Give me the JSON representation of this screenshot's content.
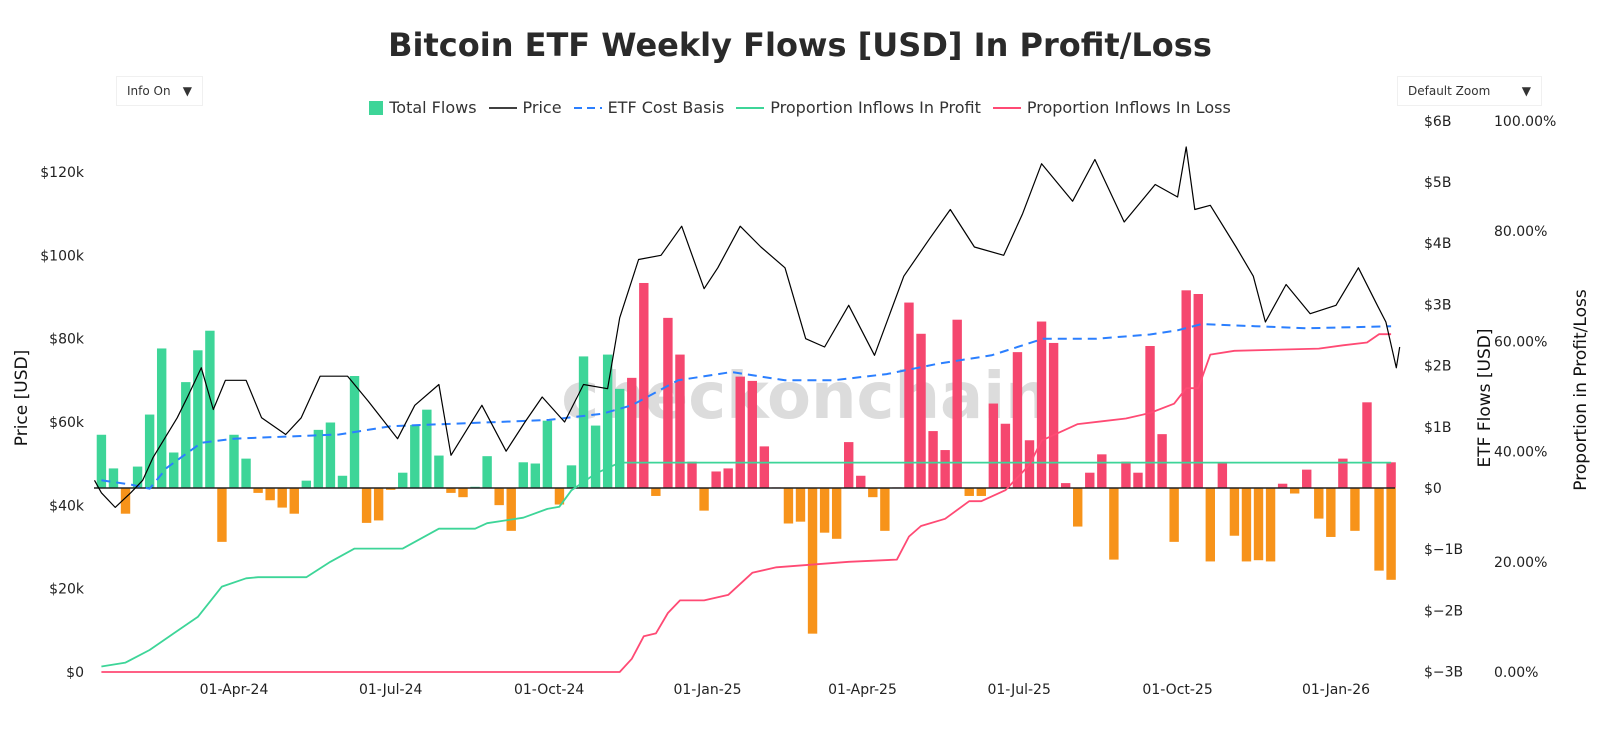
{
  "controls": {
    "info_label": "Info On",
    "zoom_label": "Default Zoom",
    "caret": "▼"
  },
  "watermark": "checkonchain",
  "chart_data": {
    "type": "bar+line",
    "title": "Bitcoin ETF Weekly Flows [USD] In Profit/Loss",
    "colors": {
      "green": "#3dd598",
      "red": "#f5476f",
      "orange": "#f7931a",
      "price": "#000000",
      "cost_basis": "#2b7fff",
      "profit_line": "#3dd598",
      "loss_line": "#ff4a74"
    },
    "legend": [
      "Total Flows",
      "Price",
      "ETF Cost Basis",
      "Proportion Inflows In Profit",
      "Proportion Inflows In Loss"
    ],
    "legend_placement": "top-center",
    "grid": false,
    "x_ticks": [
      "01-Apr-24",
      "01-Jul-24",
      "01-Oct-24",
      "01-Jan-25",
      "01-Apr-25",
      "01-Jul-25",
      "01-Oct-25",
      "01-Jan-26"
    ],
    "x_tick_dates": [
      "2024-04-01",
      "2024-07-01",
      "2024-10-01",
      "2025-01-01",
      "2025-04-01",
      "2025-07-01",
      "2025-10-01",
      "2026-01-01"
    ],
    "y_left": {
      "label": "Price [USD]",
      "range": [
        0,
        120000
      ],
      "ticks": [
        "$0",
        "$20k",
        "$40k",
        "$60k",
        "$80k",
        "$100k",
        "$120k"
      ]
    },
    "y_right": {
      "label": "ETF Flows [USD]",
      "range_billions": [
        -3,
        6
      ],
      "ticks": [
        "$−3B",
        "$−2B",
        "$−1B",
        "$0",
        "$1B",
        "$2B",
        "$3B",
        "$4B",
        "$5B",
        "$6B"
      ]
    },
    "y_right2": {
      "label": "Proportion in Profit/Loss",
      "range_percent": [
        0,
        100
      ],
      "ticks": [
        "0.00%",
        "20.00%",
        "40.00%",
        "60.00%",
        "80.00%",
        "100.00%"
      ]
    },
    "flows_billions": [
      [
        "2024-01-15",
        0.87,
        "green"
      ],
      [
        "2024-01-22",
        0.32,
        "green"
      ],
      [
        "2024-01-29",
        -0.42,
        "orange"
      ],
      [
        "2024-02-05",
        0.35,
        "green"
      ],
      [
        "2024-02-12",
        1.2,
        "green"
      ],
      [
        "2024-02-19",
        2.28,
        "green"
      ],
      [
        "2024-02-26",
        0.58,
        "green"
      ],
      [
        "2024-03-04",
        1.73,
        "green"
      ],
      [
        "2024-03-11",
        2.25,
        "green"
      ],
      [
        "2024-03-18",
        2.57,
        "green"
      ],
      [
        "2024-03-25",
        -0.88,
        "orange"
      ],
      [
        "2024-04-01",
        0.87,
        "green"
      ],
      [
        "2024-04-08",
        0.48,
        "green"
      ],
      [
        "2024-04-15",
        -0.08,
        "orange"
      ],
      [
        "2024-04-22",
        -0.2,
        "orange"
      ],
      [
        "2024-04-29",
        -0.32,
        "orange"
      ],
      [
        "2024-05-06",
        -0.42,
        "orange"
      ],
      [
        "2024-05-13",
        0.12,
        "green"
      ],
      [
        "2024-05-20",
        0.95,
        "green"
      ],
      [
        "2024-05-27",
        1.07,
        "green"
      ],
      [
        "2024-06-03",
        0.2,
        "green"
      ],
      [
        "2024-06-10",
        1.83,
        "green"
      ],
      [
        "2024-06-17",
        -0.57,
        "orange"
      ],
      [
        "2024-06-24",
        -0.53,
        "orange"
      ],
      [
        "2024-07-01",
        -0.03,
        "orange"
      ],
      [
        "2024-07-08",
        0.25,
        "green"
      ],
      [
        "2024-07-15",
        1.03,
        "green"
      ],
      [
        "2024-07-22",
        1.28,
        "green"
      ],
      [
        "2024-07-29",
        0.53,
        "green"
      ],
      [
        "2024-08-05",
        -0.08,
        "orange"
      ],
      [
        "2024-08-12",
        -0.15,
        "orange"
      ],
      [
        "2024-08-19",
        0.02,
        "green"
      ],
      [
        "2024-08-26",
        0.52,
        "green"
      ],
      [
        "2024-09-02",
        -0.28,
        "orange"
      ],
      [
        "2024-09-09",
        -0.7,
        "orange"
      ],
      [
        "2024-09-16",
        0.42,
        "green"
      ],
      [
        "2024-09-23",
        0.4,
        "green"
      ],
      [
        "2024-09-30",
        1.1,
        "green"
      ],
      [
        "2024-10-07",
        -0.27,
        "orange"
      ],
      [
        "2024-10-14",
        0.37,
        "green"
      ],
      [
        "2024-10-21",
        2.15,
        "green"
      ],
      [
        "2024-10-28",
        1.02,
        "green"
      ],
      [
        "2024-11-04",
        2.18,
        "green"
      ],
      [
        "2024-11-11",
        1.62,
        "green"
      ],
      [
        "2024-11-18",
        1.8,
        "red"
      ],
      [
        "2024-11-25",
        3.35,
        "red"
      ],
      [
        "2024-12-02",
        -0.13,
        "orange"
      ],
      [
        "2024-12-09",
        2.78,
        "red"
      ],
      [
        "2024-12-16",
        2.18,
        "red"
      ],
      [
        "2024-12-23",
        0.43,
        "red"
      ],
      [
        "2024-12-30",
        -0.37,
        "orange"
      ],
      [
        "2025-01-06",
        0.27,
        "red"
      ],
      [
        "2025-01-13",
        0.32,
        "red"
      ],
      [
        "2025-01-20",
        1.82,
        "red"
      ],
      [
        "2025-01-27",
        1.75,
        "red"
      ],
      [
        "2025-02-03",
        0.68,
        "red"
      ],
      [
        "2025-02-10",
        0.01,
        "red"
      ],
      [
        "2025-02-17",
        -0.58,
        "orange"
      ],
      [
        "2025-02-24",
        -0.55,
        "orange"
      ],
      [
        "2025-03-03",
        -2.38,
        "orange"
      ],
      [
        "2025-03-10",
        -0.73,
        "orange"
      ],
      [
        "2025-03-17",
        -0.83,
        "orange"
      ],
      [
        "2025-03-24",
        0.75,
        "red"
      ],
      [
        "2025-03-31",
        0.2,
        "red"
      ],
      [
        "2025-04-07",
        -0.15,
        "orange"
      ],
      [
        "2025-04-14",
        -0.7,
        "orange"
      ],
      [
        "2025-04-21",
        0.01,
        "red"
      ],
      [
        "2025-04-28",
        3.03,
        "red"
      ],
      [
        "2025-05-05",
        2.52,
        "red"
      ],
      [
        "2025-05-12",
        0.93,
        "red"
      ],
      [
        "2025-05-19",
        0.62,
        "red"
      ],
      [
        "2025-05-26",
        2.75,
        "red"
      ],
      [
        "2025-06-02",
        -0.13,
        "orange"
      ],
      [
        "2025-06-09",
        -0.13,
        "orange"
      ],
      [
        "2025-06-16",
        1.38,
        "red"
      ],
      [
        "2025-06-23",
        1.05,
        "red"
      ],
      [
        "2025-06-30",
        2.22,
        "red"
      ],
      [
        "2025-07-07",
        0.78,
        "red"
      ],
      [
        "2025-07-14",
        2.72,
        "red"
      ],
      [
        "2025-07-21",
        2.37,
        "red"
      ],
      [
        "2025-07-28",
        0.08,
        "red"
      ],
      [
        "2025-08-04",
        -0.63,
        "orange"
      ],
      [
        "2025-08-11",
        0.25,
        "red"
      ],
      [
        "2025-08-18",
        0.55,
        "red"
      ],
      [
        "2025-08-25",
        -1.17,
        "orange"
      ],
      [
        "2025-09-01",
        0.43,
        "red"
      ],
      [
        "2025-09-08",
        0.25,
        "red"
      ],
      [
        "2025-09-15",
        2.32,
        "red"
      ],
      [
        "2025-09-22",
        0.88,
        "red"
      ],
      [
        "2025-09-29",
        -0.88,
        "orange"
      ],
      [
        "2025-10-06",
        3.23,
        "red"
      ],
      [
        "2025-10-13",
        3.17,
        "red"
      ],
      [
        "2025-10-20",
        -1.2,
        "orange"
      ],
      [
        "2025-10-27",
        0.42,
        "red"
      ],
      [
        "2025-11-03",
        -0.78,
        "orange"
      ],
      [
        "2025-11-10",
        -1.2,
        "orange"
      ],
      [
        "2025-11-17",
        -1.18,
        "orange"
      ],
      [
        "2025-11-24",
        -1.2,
        "orange"
      ],
      [
        "2025-12-01",
        0.07,
        "red"
      ],
      [
        "2025-12-08",
        -0.09,
        "orange"
      ],
      [
        "2025-12-15",
        0.3,
        "red"
      ],
      [
        "2025-12-22",
        -0.5,
        "orange"
      ],
      [
        "2025-12-29",
        -0.8,
        "orange"
      ],
      [
        "2026-01-05",
        0.48,
        "red"
      ],
      [
        "2026-01-12",
        -0.7,
        "orange"
      ],
      [
        "2026-01-19",
        1.4,
        "red"
      ],
      [
        "2026-01-26",
        -1.35,
        "orange"
      ],
      [
        "2026-02-02",
        -1.5,
        "orange"
      ],
      [
        "2026-02-02",
        0.42,
        "red"
      ]
    ],
    "price_usd_k": [
      [
        "2024-01-11",
        46
      ],
      [
        "2024-01-15",
        43
      ],
      [
        "2024-01-23",
        39.5
      ],
      [
        "2024-02-01",
        43
      ],
      [
        "2024-02-08",
        46
      ],
      [
        "2024-02-14",
        51.5
      ],
      [
        "2024-02-28",
        61
      ],
      [
        "2024-03-05",
        66
      ],
      [
        "2024-03-13",
        73
      ],
      [
        "2024-03-20",
        63
      ],
      [
        "2024-03-27",
        70
      ],
      [
        "2024-04-08",
        70
      ],
      [
        "2024-04-17",
        61
      ],
      [
        "2024-05-01",
        57
      ],
      [
        "2024-05-10",
        61
      ],
      [
        "2024-05-21",
        71
      ],
      [
        "2024-06-06",
        71
      ],
      [
        "2024-06-18",
        65
      ],
      [
        "2024-07-05",
        56
      ],
      [
        "2024-07-15",
        64
      ],
      [
        "2024-07-29",
        69
      ],
      [
        "2024-08-05",
        52
      ],
      [
        "2024-08-23",
        64
      ],
      [
        "2024-09-06",
        53
      ],
      [
        "2024-09-17",
        60
      ],
      [
        "2024-09-27",
        66
      ],
      [
        "2024-10-10",
        60
      ],
      [
        "2024-10-21",
        69
      ],
      [
        "2024-11-04",
        68
      ],
      [
        "2024-11-11",
        85
      ],
      [
        "2024-11-22",
        99
      ],
      [
        "2024-12-05",
        100
      ],
      [
        "2024-12-17",
        107
      ],
      [
        "2024-12-30",
        92
      ],
      [
        "2025-01-07",
        97
      ],
      [
        "2025-01-20",
        107
      ],
      [
        "2025-02-01",
        102
      ],
      [
        "2025-02-15",
        97
      ],
      [
        "2025-02-27",
        80
      ],
      [
        "2025-03-10",
        78
      ],
      [
        "2025-03-24",
        88
      ],
      [
        "2025-04-08",
        76
      ],
      [
        "2025-04-25",
        95
      ],
      [
        "2025-05-10",
        104
      ],
      [
        "2025-05-22",
        111
      ],
      [
        "2025-06-05",
        102
      ],
      [
        "2025-06-22",
        100
      ],
      [
        "2025-07-03",
        110
      ],
      [
        "2025-07-14",
        122
      ],
      [
        "2025-08-01",
        113
      ],
      [
        "2025-08-14",
        123
      ],
      [
        "2025-08-31",
        108
      ],
      [
        "2025-09-18",
        117
      ],
      [
        "2025-10-01",
        114
      ],
      [
        "2025-10-06",
        126
      ],
      [
        "2025-10-11",
        111
      ],
      [
        "2025-10-20",
        112
      ],
      [
        "2025-11-04",
        102
      ],
      [
        "2025-11-14",
        95
      ],
      [
        "2025-11-21",
        84
      ],
      [
        "2025-12-03",
        93
      ],
      [
        "2025-12-17",
        86
      ],
      [
        "2026-01-01",
        88
      ],
      [
        "2026-01-14",
        97
      ],
      [
        "2026-01-25",
        88
      ],
      [
        "2026-01-30",
        84
      ],
      [
        "2026-02-05",
        73
      ],
      [
        "2026-02-07",
        78
      ]
    ],
    "etf_cost_basis_usd_k": [
      [
        "2024-01-15",
        46
      ],
      [
        "2024-02-01",
        45
      ],
      [
        "2024-02-12",
        44
      ],
      [
        "2024-02-22",
        49
      ],
      [
        "2024-03-13",
        55
      ],
      [
        "2024-04-01",
        56
      ],
      [
        "2024-05-01",
        56.5
      ],
      [
        "2024-06-01",
        57
      ],
      [
        "2024-07-01",
        59
      ],
      [
        "2024-08-01",
        59.5
      ],
      [
        "2024-09-01",
        60
      ],
      [
        "2024-10-01",
        60.5
      ],
      [
        "2024-11-01",
        62
      ],
      [
        "2024-11-18",
        64
      ],
      [
        "2024-12-15",
        70
      ],
      [
        "2025-01-15",
        72
      ],
      [
        "2025-02-15",
        70
      ],
      [
        "2025-03-15",
        70
      ],
      [
        "2025-04-15",
        71.5
      ],
      [
        "2025-05-15",
        74
      ],
      [
        "2025-06-15",
        76
      ],
      [
        "2025-07-15",
        80
      ],
      [
        "2025-08-15",
        80
      ],
      [
        "2025-09-15",
        81
      ],
      [
        "2025-10-01",
        82
      ],
      [
        "2025-10-15",
        83.5
      ],
      [
        "2025-11-15",
        83
      ],
      [
        "2025-12-15",
        82.5
      ],
      [
        "2026-02-02",
        83
      ]
    ],
    "proportion_in_profit_pct": [
      [
        "2024-01-15",
        1
      ],
      [
        "2024-01-29",
        1.7
      ],
      [
        "2024-02-12",
        4
      ],
      [
        "2024-02-26",
        7
      ],
      [
        "2024-03-11",
        10
      ],
      [
        "2024-03-25",
        15.5
      ],
      [
        "2024-04-08",
        17
      ],
      [
        "2024-04-15",
        17.2
      ],
      [
        "2024-05-13",
        17.2
      ],
      [
        "2024-05-27",
        20
      ],
      [
        "2024-06-10",
        22.4
      ],
      [
        "2024-07-08",
        22.4
      ],
      [
        "2024-07-29",
        26
      ],
      [
        "2024-08-19",
        26
      ],
      [
        "2024-08-26",
        27
      ],
      [
        "2024-09-16",
        28
      ],
      [
        "2024-09-30",
        29.6
      ],
      [
        "2024-10-07",
        30
      ],
      [
        "2024-10-14",
        33
      ],
      [
        "2024-10-28",
        36
      ],
      [
        "2024-11-11",
        38
      ],
      [
        "2026-02-02",
        38
      ]
    ],
    "proportion_in_loss_pct": [
      [
        "2024-01-15",
        0
      ],
      [
        "2024-11-11",
        0
      ],
      [
        "2024-11-18",
        2.4
      ],
      [
        "2024-11-25",
        6.5
      ],
      [
        "2024-12-02",
        7
      ],
      [
        "2024-12-09",
        10.7
      ],
      [
        "2024-12-16",
        13
      ],
      [
        "2024-12-30",
        13
      ],
      [
        "2025-01-13",
        14
      ],
      [
        "2025-01-27",
        18
      ],
      [
        "2025-02-10",
        19
      ],
      [
        "2025-03-24",
        20
      ],
      [
        "2025-04-21",
        20.4
      ],
      [
        "2025-04-28",
        24.6
      ],
      [
        "2025-05-05",
        26.5
      ],
      [
        "2025-05-19",
        27.8
      ],
      [
        "2025-06-02",
        31
      ],
      [
        "2025-06-09",
        31
      ],
      [
        "2025-06-23",
        33
      ],
      [
        "2025-07-07",
        37.6
      ],
      [
        "2025-07-14",
        42
      ],
      [
        "2025-08-04",
        45
      ],
      [
        "2025-08-18",
        45.5
      ],
      [
        "2025-09-01",
        46
      ],
      [
        "2025-09-15",
        47
      ],
      [
        "2025-09-29",
        48.7
      ],
      [
        "2025-10-06",
        51.5
      ],
      [
        "2025-10-13",
        51.5
      ],
      [
        "2025-10-20",
        57.6
      ],
      [
        "2025-11-03",
        58.3
      ],
      [
        "2025-12-22",
        58.7
      ],
      [
        "2026-01-05",
        59.3
      ],
      [
        "2026-01-19",
        59.8
      ],
      [
        "2026-01-26",
        61.3
      ],
      [
        "2026-02-02",
        61.3
      ]
    ]
  }
}
